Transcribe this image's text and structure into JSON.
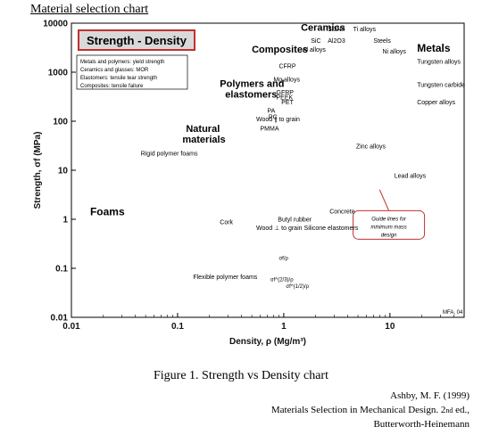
{
  "page": {
    "heading": "Material selection chart",
    "caption": "Figure 1. Strength vs Density chart",
    "citation": {
      "line1": "Ashby, M. F. (1999)",
      "line2_main": "Materials Selection in Mechanical Design. 2",
      "line2_sup": "nd",
      "line2_end": " ed.,",
      "line3": "Butterworth-Heinemann"
    }
  },
  "chart_data": {
    "type": "scatter",
    "title": "Strength - Density",
    "xlabel": "Density, ρ (Mg/m³)",
    "ylabel": "Strength, σf (MPa)",
    "xscale": "log",
    "yscale": "log",
    "xlim": [
      0.01,
      50
    ],
    "ylim": [
      0.01,
      10000
    ],
    "x_ticks": [
      "0.01",
      "0.1",
      "1",
      "10"
    ],
    "y_ticks": [
      "10000",
      "1000",
      "100",
      "10",
      "1",
      "0.1",
      "0.01"
    ],
    "legend_box": [
      "Metals and polymers: yield strength",
      "Ceramics and glasses: MOR",
      "Elastomers: tensile tear strength",
      "Composites: tensile failure"
    ],
    "envelopes": [
      {
        "name": "Foams",
        "color": "#a8e07a",
        "x_range": [
          0.015,
          0.4
        ],
        "y_range": [
          0.015,
          30
        ]
      },
      {
        "name": "Natural materials",
        "color": "#3fb04a",
        "x_range": [
          0.1,
          1.5
        ],
        "y_range": [
          0.8,
          250
        ]
      },
      {
        "name": "Polymers and elastomers",
        "color": "#5aa9e6",
        "x_range": [
          0.9,
          2.2
        ],
        "y_range": [
          1,
          250
        ]
      },
      {
        "name": "Composites",
        "color": "#8b5a2b",
        "x_range": [
          1.4,
          2.5
        ],
        "y_range": [
          50,
          1500
        ]
      },
      {
        "name": "Ceramics",
        "color": "#f2e45a",
        "x_range": [
          2,
          5
        ],
        "y_range": [
          3,
          8000
        ]
      },
      {
        "name": "Metals",
        "color": "#e85050",
        "x_range": [
          1.8,
          25
        ],
        "y_range": [
          10,
          4500
        ]
      }
    ],
    "materials": [
      {
        "label": "Rigid polymer foams",
        "x": 0.06,
        "y": 3
      },
      {
        "label": "Flexible polymer foams",
        "x": 0.05,
        "y": 0.1
      },
      {
        "label": "Cork",
        "x": 0.18,
        "y": 1.5
      },
      {
        "label": "Wood ⊥ to grain",
        "x": 0.65,
        "y": 1.5
      },
      {
        "label": "Wood ∥ to grain",
        "x": 0.7,
        "y": 50
      },
      {
        "label": "Butyl rubber",
        "x": 0.95,
        "y": 6
      },
      {
        "label": "Silicone elastomers",
        "x": 1.4,
        "y": 3
      },
      {
        "label": "PMMA",
        "x": 1.2,
        "y": 65
      },
      {
        "label": "PC",
        "x": 1.2,
        "y": 70
      },
      {
        "label": "PA",
        "x": 1.15,
        "y": 80
      },
      {
        "label": "PEEK",
        "x": 1.3,
        "y": 100
      },
      {
        "label": "PET",
        "x": 1.35,
        "y": 60
      },
      {
        "label": "GFRP",
        "x": 1.9,
        "y": 200
      },
      {
        "label": "CFRP",
        "x": 1.6,
        "y": 600
      },
      {
        "label": "Mg alloys",
        "x": 1.8,
        "y": 200
      },
      {
        "label": "Al alloys",
        "x": 2.7,
        "y": 300
      },
      {
        "label": "SiC",
        "x": 3.1,
        "y": 1000
      },
      {
        "label": "Si3N4",
        "x": 3.2,
        "y": 1500
      },
      {
        "label": "Al2O3",
        "x": 3.9,
        "y": 600
      },
      {
        "label": "Concrete",
        "x": 2.3,
        "y": 2
      },
      {
        "label": "Ti alloys",
        "x": 4.5,
        "y": 800
      },
      {
        "label": "Steels",
        "x": 7.8,
        "y": 1000
      },
      {
        "label": "Ni alloys",
        "x": 8.5,
        "y": 800
      },
      {
        "label": "Copper alloys",
        "x": 8.9,
        "y": 300
      },
      {
        "label": "Zinc alloys",
        "x": 6.5,
        "y": 150
      },
      {
        "label": "Lead alloys",
        "x": 11,
        "y": 12
      },
      {
        "label": "Tungsten alloys",
        "x": 17,
        "y": 700
      },
      {
        "label": "Tungsten carbide",
        "x": 15,
        "y": 400
      }
    ],
    "guide_lines": {
      "label": "Guide lines for minimum mass design",
      "exponents": [
        "σf/ρ",
        "σf^(2/3)/ρ",
        "σf^(1/2)/ρ"
      ]
    },
    "credit": "MFA, 04"
  }
}
